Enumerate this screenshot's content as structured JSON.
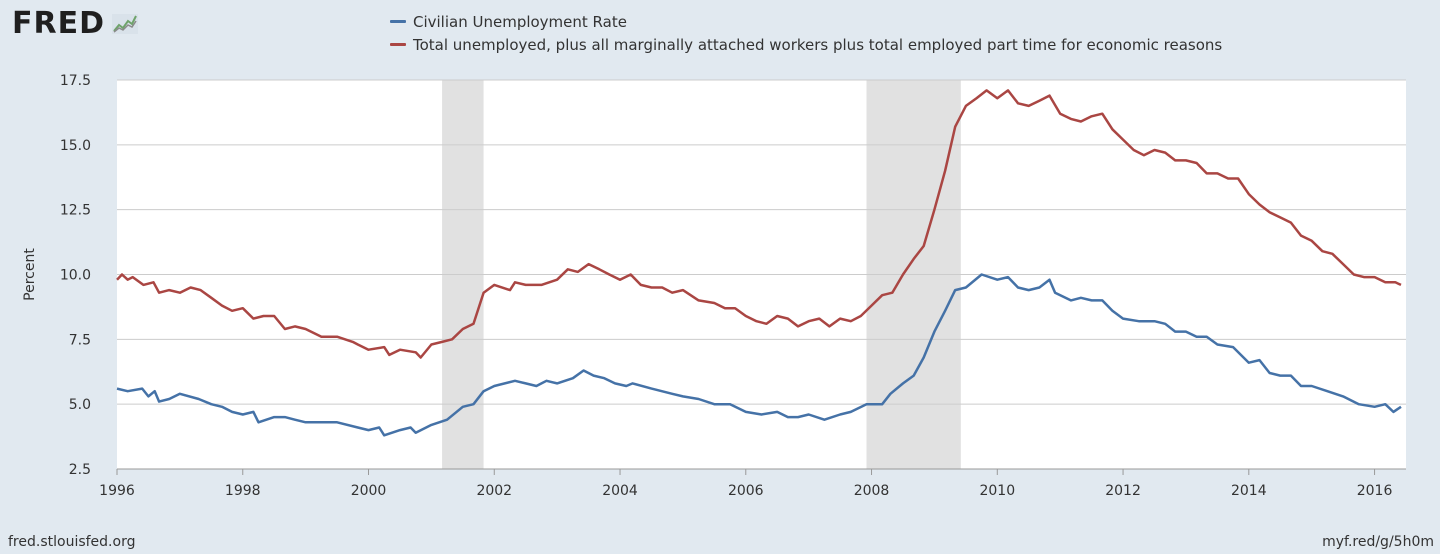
{
  "brand": {
    "name": "FRED",
    "logo_icon": "chart-line-icon"
  },
  "footer": {
    "source": "fred.stlouisfed.org",
    "short_url": "myf.red/g/5h0m"
  },
  "colors": {
    "series1": "#4572a7",
    "series2": "#aa4643",
    "recession": "#e1e1e1",
    "grid": "#cccccc",
    "background": "#e1e9f0"
  },
  "chart_data": {
    "type": "line",
    "title": "",
    "xlabel": "",
    "ylabel": "Percent",
    "xlim": [
      1996.0,
      2016.5
    ],
    "ylim": [
      2.5,
      17.5
    ],
    "yticks": [
      2.5,
      5.0,
      7.5,
      10.0,
      12.5,
      15.0,
      17.5
    ],
    "ytick_labels": [
      "2.5",
      "5.0",
      "7.5",
      "10.0",
      "12.5",
      "15.0",
      "17.5"
    ],
    "xticks": [
      1996,
      1998,
      2000,
      2002,
      2004,
      2006,
      2008,
      2010,
      2012,
      2014,
      2016
    ],
    "xtick_labels": [
      "1996",
      "1998",
      "2000",
      "2002",
      "2004",
      "2006",
      "2008",
      "2010",
      "2012",
      "2014",
      "2016"
    ],
    "recessions": [
      [
        2001.17,
        2001.83
      ],
      [
        2007.92,
        2009.42
      ]
    ],
    "legend_position": "top",
    "series": [
      {
        "name": "Civilian Unemployment Rate",
        "points": [
          [
            1996.0,
            5.6
          ],
          [
            1996.17,
            5.5
          ],
          [
            1996.4,
            5.6
          ],
          [
            1996.5,
            5.3
          ],
          [
            1996.6,
            5.5
          ],
          [
            1996.67,
            5.1
          ],
          [
            1996.83,
            5.2
          ],
          [
            1997.0,
            5.4
          ],
          [
            1997.3,
            5.2
          ],
          [
            1997.5,
            5.0
          ],
          [
            1997.67,
            4.9
          ],
          [
            1997.83,
            4.7
          ],
          [
            1998.0,
            4.6
          ],
          [
            1998.17,
            4.7
          ],
          [
            1998.25,
            4.3
          ],
          [
            1998.5,
            4.5
          ],
          [
            1998.67,
            4.5
          ],
          [
            1998.83,
            4.4
          ],
          [
            1999.0,
            4.3
          ],
          [
            1999.25,
            4.3
          ],
          [
            1999.5,
            4.3
          ],
          [
            1999.83,
            4.1
          ],
          [
            2000.0,
            4.0
          ],
          [
            2000.17,
            4.1
          ],
          [
            2000.25,
            3.8
          ],
          [
            2000.5,
            4.0
          ],
          [
            2000.67,
            4.1
          ],
          [
            2000.75,
            3.9
          ],
          [
            2001.0,
            4.2
          ],
          [
            2001.25,
            4.4
          ],
          [
            2001.5,
            4.9
          ],
          [
            2001.67,
            5.0
          ],
          [
            2001.83,
            5.5
          ],
          [
            2002.0,
            5.7
          ],
          [
            2002.33,
            5.9
          ],
          [
            2002.5,
            5.8
          ],
          [
            2002.67,
            5.7
          ],
          [
            2002.83,
            5.9
          ],
          [
            2003.0,
            5.8
          ],
          [
            2003.25,
            6.0
          ],
          [
            2003.42,
            6.3
          ],
          [
            2003.58,
            6.1
          ],
          [
            2003.75,
            6.0
          ],
          [
            2003.92,
            5.8
          ],
          [
            2004.1,
            5.7
          ],
          [
            2004.2,
            5.8
          ],
          [
            2004.5,
            5.6
          ],
          [
            2004.83,
            5.4
          ],
          [
            2005.0,
            5.3
          ],
          [
            2005.25,
            5.2
          ],
          [
            2005.5,
            5.0
          ],
          [
            2005.75,
            5.0
          ],
          [
            2006.0,
            4.7
          ],
          [
            2006.25,
            4.6
          ],
          [
            2006.5,
            4.7
          ],
          [
            2006.67,
            4.5
          ],
          [
            2006.83,
            4.5
          ],
          [
            2007.0,
            4.6
          ],
          [
            2007.25,
            4.4
          ],
          [
            2007.5,
            4.6
          ],
          [
            2007.67,
            4.7
          ],
          [
            2007.92,
            5.0
          ],
          [
            2008.17,
            5.0
          ],
          [
            2008.3,
            5.4
          ],
          [
            2008.5,
            5.8
          ],
          [
            2008.67,
            6.1
          ],
          [
            2008.83,
            6.8
          ],
          [
            2009.0,
            7.8
          ],
          [
            2009.17,
            8.6
          ],
          [
            2009.33,
            9.4
          ],
          [
            2009.5,
            9.5
          ],
          [
            2009.75,
            10.0
          ],
          [
            2010.0,
            9.8
          ],
          [
            2010.17,
            9.9
          ],
          [
            2010.33,
            9.5
          ],
          [
            2010.5,
            9.4
          ],
          [
            2010.67,
            9.5
          ],
          [
            2010.83,
            9.8
          ],
          [
            2010.92,
            9.3
          ],
          [
            2011.17,
            9.0
          ],
          [
            2011.33,
            9.1
          ],
          [
            2011.5,
            9.0
          ],
          [
            2011.67,
            9.0
          ],
          [
            2011.83,
            8.6
          ],
          [
            2012.0,
            8.3
          ],
          [
            2012.25,
            8.2
          ],
          [
            2012.5,
            8.2
          ],
          [
            2012.67,
            8.1
          ],
          [
            2012.83,
            7.8
          ],
          [
            2013.0,
            7.8
          ],
          [
            2013.17,
            7.6
          ],
          [
            2013.33,
            7.6
          ],
          [
            2013.5,
            7.3
          ],
          [
            2013.75,
            7.2
          ],
          [
            2014.0,
            6.6
          ],
          [
            2014.17,
            6.7
          ],
          [
            2014.33,
            6.2
          ],
          [
            2014.5,
            6.1
          ],
          [
            2014.67,
            6.1
          ],
          [
            2014.83,
            5.7
          ],
          [
            2015.0,
            5.7
          ],
          [
            2015.25,
            5.5
          ],
          [
            2015.5,
            5.3
          ],
          [
            2015.75,
            5.0
          ],
          [
            2016.0,
            4.9
          ],
          [
            2016.17,
            5.0
          ],
          [
            2016.3,
            4.7
          ],
          [
            2016.42,
            4.9
          ]
        ]
      },
      {
        "name": "Total unemployed, plus all marginally attached workers plus total employed part time for economic reasons",
        "points": [
          [
            1996.0,
            9.8
          ],
          [
            1996.08,
            10.0
          ],
          [
            1996.17,
            9.8
          ],
          [
            1996.25,
            9.9
          ],
          [
            1996.42,
            9.6
          ],
          [
            1996.58,
            9.7
          ],
          [
            1996.67,
            9.3
          ],
          [
            1996.83,
            9.4
          ],
          [
            1997.0,
            9.3
          ],
          [
            1997.17,
            9.5
          ],
          [
            1997.33,
            9.4
          ],
          [
            1997.5,
            9.1
          ],
          [
            1997.67,
            8.8
          ],
          [
            1997.83,
            8.6
          ],
          [
            1998.0,
            8.7
          ],
          [
            1998.17,
            8.3
          ],
          [
            1998.33,
            8.4
          ],
          [
            1998.5,
            8.4
          ],
          [
            1998.67,
            7.9
          ],
          [
            1998.83,
            8.0
          ],
          [
            1999.0,
            7.9
          ],
          [
            1999.25,
            7.6
          ],
          [
            1999.5,
            7.6
          ],
          [
            1999.75,
            7.4
          ],
          [
            1999.83,
            7.3
          ],
          [
            2000.0,
            7.1
          ],
          [
            2000.25,
            7.2
          ],
          [
            2000.33,
            6.9
          ],
          [
            2000.5,
            7.1
          ],
          [
            2000.75,
            7.0
          ],
          [
            2000.83,
            6.8
          ],
          [
            2001.0,
            7.3
          ],
          [
            2001.17,
            7.4
          ],
          [
            2001.33,
            7.5
          ],
          [
            2001.5,
            7.9
          ],
          [
            2001.67,
            8.1
          ],
          [
            2001.83,
            9.3
          ],
          [
            2002.0,
            9.6
          ],
          [
            2002.25,
            9.4
          ],
          [
            2002.33,
            9.7
          ],
          [
            2002.5,
            9.6
          ],
          [
            2002.75,
            9.6
          ],
          [
            2003.0,
            9.8
          ],
          [
            2003.17,
            10.2
          ],
          [
            2003.33,
            10.1
          ],
          [
            2003.5,
            10.4
          ],
          [
            2003.67,
            10.2
          ],
          [
            2003.83,
            10.0
          ],
          [
            2004.0,
            9.8
          ],
          [
            2004.17,
            10.0
          ],
          [
            2004.33,
            9.6
          ],
          [
            2004.5,
            9.5
          ],
          [
            2004.67,
            9.5
          ],
          [
            2004.83,
            9.3
          ],
          [
            2005.0,
            9.4
          ],
          [
            2005.25,
            9.0
          ],
          [
            2005.5,
            8.9
          ],
          [
            2005.67,
            8.7
          ],
          [
            2005.83,
            8.7
          ],
          [
            2006.0,
            8.4
          ],
          [
            2006.17,
            8.2
          ],
          [
            2006.33,
            8.1
          ],
          [
            2006.5,
            8.4
          ],
          [
            2006.67,
            8.3
          ],
          [
            2006.83,
            8.0
          ],
          [
            2007.0,
            8.2
          ],
          [
            2007.17,
            8.3
          ],
          [
            2007.33,
            8.0
          ],
          [
            2007.5,
            8.3
          ],
          [
            2007.67,
            8.2
          ],
          [
            2007.83,
            8.4
          ],
          [
            2008.0,
            8.8
          ],
          [
            2008.17,
            9.2
          ],
          [
            2008.33,
            9.3
          ],
          [
            2008.5,
            10.0
          ],
          [
            2008.67,
            10.6
          ],
          [
            2008.83,
            11.1
          ],
          [
            2009.0,
            12.5
          ],
          [
            2009.17,
            14.0
          ],
          [
            2009.33,
            15.7
          ],
          [
            2009.5,
            16.5
          ],
          [
            2009.67,
            16.8
          ],
          [
            2009.83,
            17.1
          ],
          [
            2010.0,
            16.8
          ],
          [
            2010.17,
            17.1
          ],
          [
            2010.33,
            16.6
          ],
          [
            2010.5,
            16.5
          ],
          [
            2010.67,
            16.7
          ],
          [
            2010.83,
            16.9
          ],
          [
            2011.0,
            16.2
          ],
          [
            2011.17,
            16.0
          ],
          [
            2011.33,
            15.9
          ],
          [
            2011.5,
            16.1
          ],
          [
            2011.67,
            16.2
          ],
          [
            2011.83,
            15.6
          ],
          [
            2012.0,
            15.2
          ],
          [
            2012.17,
            14.8
          ],
          [
            2012.33,
            14.6
          ],
          [
            2012.5,
            14.8
          ],
          [
            2012.67,
            14.7
          ],
          [
            2012.83,
            14.4
          ],
          [
            2013.0,
            14.4
          ],
          [
            2013.17,
            14.3
          ],
          [
            2013.33,
            13.9
          ],
          [
            2013.5,
            13.9
          ],
          [
            2013.67,
            13.7
          ],
          [
            2013.83,
            13.7
          ],
          [
            2014.0,
            13.1
          ],
          [
            2014.17,
            12.7
          ],
          [
            2014.33,
            12.4
          ],
          [
            2014.5,
            12.2
          ],
          [
            2014.67,
            12.0
          ],
          [
            2014.83,
            11.5
          ],
          [
            2015.0,
            11.3
          ],
          [
            2015.17,
            10.9
          ],
          [
            2015.33,
            10.8
          ],
          [
            2015.5,
            10.4
          ],
          [
            2015.67,
            10.0
          ],
          [
            2015.83,
            9.9
          ],
          [
            2016.0,
            9.9
          ],
          [
            2016.17,
            9.7
          ],
          [
            2016.33,
            9.7
          ],
          [
            2016.42,
            9.6
          ]
        ]
      }
    ]
  }
}
